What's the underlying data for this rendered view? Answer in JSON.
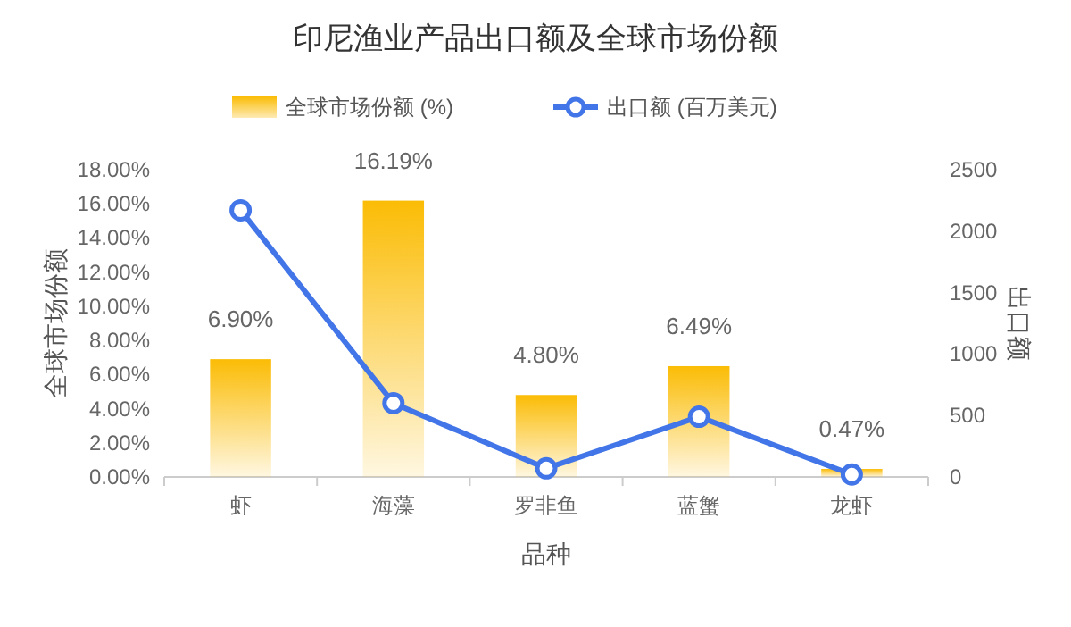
{
  "chart_data": {
    "type": "bar",
    "title": "印尼渔业产品出口额及全球市场份额",
    "xlabel": "品种",
    "ylabel": "全球市场份额",
    "y2label": "出口额",
    "categories": [
      "虾",
      "海藻",
      "罗非鱼",
      "蓝蟹",
      "龙虾"
    ],
    "series": [
      {
        "name": "全球市场份额 (%)",
        "color": "#fbbc05",
        "values": [
          6.9,
          16.19,
          4.8,
          6.49,
          0.47
        ],
        "value_labels": [
          "6.90%",
          "16.19%",
          "4.80%",
          "6.49%",
          "0.47%"
        ]
      },
      {
        "name": "出口额 (百万美元)",
        "type": "line",
        "axis": "y2",
        "color": "#4275e8",
        "marker": "circle",
        "values": [
          2170,
          600,
          70,
          490,
          20
        ]
      }
    ],
    "ylim": [
      0,
      18
    ],
    "yticks": [
      {
        "value": 0,
        "label": "0.00%"
      },
      {
        "value": 2,
        "label": "2.00%"
      },
      {
        "value": 4,
        "label": "4.00%"
      },
      {
        "value": 6,
        "label": "6.00%"
      },
      {
        "value": 8,
        "label": "8.00%"
      },
      {
        "value": 10,
        "label": "10.00%"
      },
      {
        "value": 12,
        "label": "12.00%"
      },
      {
        "value": 14,
        "label": "14.00%"
      },
      {
        "value": 16,
        "label": "16.00%"
      },
      {
        "value": 18,
        "label": "18.00%"
      }
    ],
    "y2lim": [
      0,
      2500
    ],
    "y2ticks": [
      0,
      500,
      1000,
      1500,
      2000,
      2500
    ],
    "legend": "top",
    "grid": false
  }
}
